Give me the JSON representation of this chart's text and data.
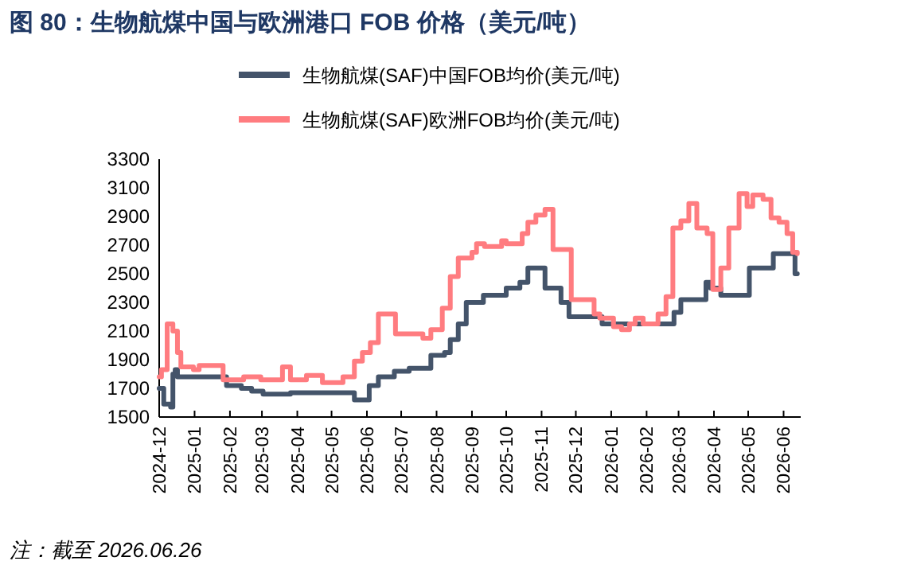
{
  "chart_data": {
    "type": "step",
    "title": "图 80：生物航煤中国与欧洲港口 FOB 价格（美元/吨）",
    "annotations": [
      "注：截至 2026.06.26"
    ],
    "legend": "top",
    "marker": "none",
    "line_style": "solid",
    "xlim": [
      "2024-12-01",
      "2026-06-16"
    ],
    "xticks": [
      {
        "value": "2024-12-01",
        "label": "2024-12"
      },
      {
        "value": "2025-01-01",
        "label": "2025-01"
      },
      {
        "value": "2025-02-01",
        "label": "2025-02"
      },
      {
        "value": "2025-03-01",
        "label": "2025-03"
      },
      {
        "value": "2025-04-01",
        "label": "2025-04"
      },
      {
        "value": "2025-05-01",
        "label": "2025-05"
      },
      {
        "value": "2025-06-01",
        "label": "2025-06"
      },
      {
        "value": "2025-07-01",
        "label": "2025-07"
      },
      {
        "value": "2025-08-01",
        "label": "2025-08"
      },
      {
        "value": "2025-09-01",
        "label": "2025-09"
      },
      {
        "value": "2025-10-01",
        "label": "2025-10"
      },
      {
        "value": "2025-11-01",
        "label": "2025-11"
      },
      {
        "value": "2025-12-01",
        "label": "2025-12"
      },
      {
        "value": "2026-01-01",
        "label": "2026-01"
      },
      {
        "value": "2026-02-01",
        "label": "2026-02"
      },
      {
        "value": "2026-03-01",
        "label": "2026-03"
      },
      {
        "value": "2026-04-01",
        "label": "2026-04"
      },
      {
        "value": "2026-05-01",
        "label": "2026-05"
      },
      {
        "value": "2026-06-01",
        "label": "2026-06"
      }
    ],
    "ylim": [
      1500,
      3300
    ],
    "yticks": [
      1500,
      1700,
      1900,
      2100,
      2300,
      2500,
      2700,
      2900,
      3100,
      3300
    ],
    "series": [
      {
        "name": "生物航煤(SAF)中国FOB均价(美元/吨)",
        "color": "#44546a",
        "x": [
          "2024-12-01",
          "2024-12-05",
          "2024-12-11",
          "2024-12-13",
          "2024-12-15",
          "2024-12-17",
          "2025-01-29",
          "2025-02-11",
          "2025-02-20",
          "2025-03-02",
          "2025-03-26",
          "2025-05-21",
          "2025-06-03",
          "2025-06-11",
          "2025-06-25",
          "2025-07-08",
          "2025-07-27",
          "2025-08-08",
          "2025-08-13",
          "2025-08-20",
          "2025-08-27",
          "2025-09-11",
          "2025-10-01",
          "2025-10-13",
          "2025-10-20",
          "2025-11-04",
          "2025-11-18",
          "2025-11-25",
          "2025-12-24",
          "2026-02-25",
          "2026-03-03",
          "2026-03-25",
          "2026-03-29",
          "2026-04-07",
          "2026-05-02",
          "2026-05-23",
          "2026-06-11",
          "2026-06-13"
        ],
        "values": [
          1700,
          1590,
          1570,
          1800,
          1830,
          1780,
          1720,
          1700,
          1680,
          1660,
          1670,
          1620,
          1720,
          1780,
          1820,
          1840,
          1930,
          1950,
          2040,
          2150,
          2300,
          2350,
          2400,
          2440,
          2540,
          2400,
          2300,
          2200,
          2150,
          2230,
          2320,
          2440,
          2400,
          2350,
          2540,
          2640,
          2500,
          2500
        ]
      },
      {
        "name": "生物航煤(SAF)欧洲FOB均价(美元/吨)",
        "color": "#ff7c80",
        "x": [
          "2024-12-01",
          "2024-12-03",
          "2024-12-08",
          "2024-12-13",
          "2024-12-17",
          "2024-12-20",
          "2024-12-31",
          "2025-01-05",
          "2025-01-26",
          "2025-02-13",
          "2025-02-28",
          "2025-03-19",
          "2025-03-26",
          "2025-04-09",
          "2025-04-23",
          "2025-05-11",
          "2025-05-21",
          "2025-05-28",
          "2025-06-04",
          "2025-06-11",
          "2025-06-26",
          "2025-07-20",
          "2025-07-27",
          "2025-08-06",
          "2025-08-13",
          "2025-08-20",
          "2025-09-01",
          "2025-09-05",
          "2025-09-12",
          "2025-09-27",
          "2025-10-01",
          "2025-10-15",
          "2025-10-20",
          "2025-10-27",
          "2025-11-04",
          "2025-11-11",
          "2025-11-27",
          "2025-12-17",
          "2025-12-22",
          "2026-01-03",
          "2026-01-10",
          "2026-01-17",
          "2026-01-22",
          "2026-01-29",
          "2026-02-11",
          "2026-02-18",
          "2026-02-24",
          "2026-03-03",
          "2026-03-10",
          "2026-03-17",
          "2026-03-26",
          "2026-03-31",
          "2026-04-07",
          "2026-04-14",
          "2026-04-23",
          "2026-04-30",
          "2026-05-05",
          "2026-05-14",
          "2026-05-21",
          "2026-05-28",
          "2026-06-04",
          "2026-06-09",
          "2026-06-13"
        ],
        "values": [
          1780,
          1830,
          2150,
          2100,
          1950,
          1850,
          1830,
          1860,
          1760,
          1780,
          1760,
          1850,
          1760,
          1790,
          1740,
          1780,
          1890,
          1950,
          2020,
          2220,
          2080,
          2050,
          2110,
          2260,
          2480,
          2610,
          2650,
          2710,
          2690,
          2730,
          2710,
          2780,
          2860,
          2910,
          2950,
          2670,
          2320,
          2220,
          2190,
          2130,
          2110,
          2150,
          2190,
          2150,
          2220,
          2340,
          2820,
          2870,
          2990,
          2820,
          2780,
          2390,
          2540,
          2820,
          3060,
          2970,
          3050,
          3020,
          2890,
          2860,
          2780,
          2650,
          2640
        ]
      }
    ]
  }
}
